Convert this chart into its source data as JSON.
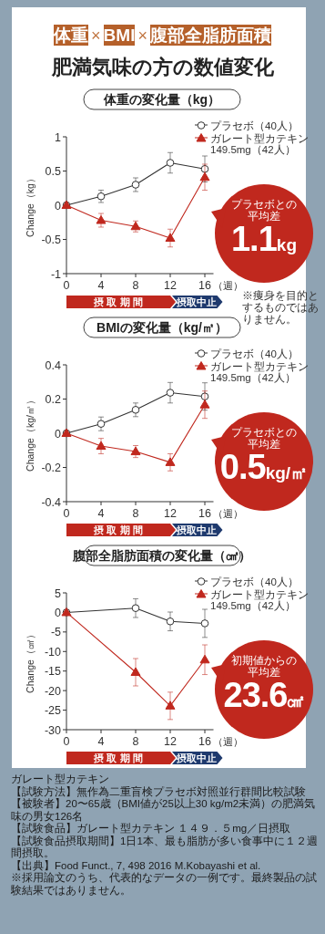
{
  "chart_data": [
    {
      "type": "other",
      "title": "体重×BMI×腹部全脂肪面積",
      "subtitle": "肥満気味の方の数値変化"
    },
    {
      "type": "line",
      "title": "体重の変化量（kg）",
      "xlabel": "（週）",
      "ylabel": "Change（kg）",
      "xlim": [
        0,
        17
      ],
      "xticks": [
        0,
        4,
        8,
        12,
        16
      ],
      "ylim": [
        -1,
        1
      ],
      "yticks": [
        -1,
        -0.5,
        0,
        0.5,
        1
      ],
      "legend": "top right",
      "grid": false,
      "series": [
        {
          "name": "プラセボ（40人）",
          "color": "#333333",
          "marker": "circle",
          "x": [
            0,
            4,
            8,
            12,
            16
          ],
          "values": [
            0,
            0.13,
            0.3,
            0.62,
            0.53
          ],
          "errors": [
            null,
            0.09,
            0.1,
            0.15,
            0.19
          ]
        },
        {
          "name": "ガレート型カテキン 149.5mg（42人）",
          "color": "#c0281e",
          "marker": "triangle",
          "x": [
            0,
            4,
            8,
            12,
            16
          ],
          "values": [
            0,
            -0.22,
            -0.31,
            -0.48,
            0.41
          ],
          "errors": [
            null,
            0.1,
            0.08,
            0.13,
            0.19
          ]
        }
      ],
      "annotations": [
        "プラセボとの平均差",
        "1.1",
        "kg",
        "摂 取 期 間",
        "摂取中止",
        "※痩身を目的とするものではありません。"
      ]
    },
    {
      "type": "line",
      "title": "BMIの変化量（kg/㎡）",
      "xlabel": "（週）",
      "ylabel": "Change（kg/㎡）",
      "xlim": [
        0,
        17
      ],
      "xticks": [
        0,
        4,
        8,
        12,
        16
      ],
      "ylim": [
        -0.4,
        0.4
      ],
      "yticks": [
        -0.4,
        -0.2,
        0,
        0.2,
        0.4
      ],
      "legend": "top right",
      "grid": false,
      "series": [
        {
          "name": "プラセボ（40人）",
          "color": "#333333",
          "marker": "circle",
          "x": [
            0,
            4,
            8,
            12,
            16
          ],
          "values": [
            0,
            0.055,
            0.137,
            0.237,
            0.215
          ],
          "errors": [
            null,
            0.04,
            0.04,
            0.06,
            0.08
          ]
        },
        {
          "name": "ガレート型カテキン 149.5mg（42人）",
          "color": "#c0281e",
          "marker": "triangle",
          "x": [
            0,
            4,
            8,
            12,
            16
          ],
          "values": [
            0,
            -0.075,
            -0.107,
            -0.17,
            0.167
          ],
          "errors": [
            null,
            0.045,
            0.035,
            0.05,
            0.08
          ]
        }
      ],
      "annotations": [
        "プラセボとの平均差",
        "0.5",
        "kg/㎡",
        "摂 取 期 間",
        "摂取中止"
      ]
    },
    {
      "type": "line",
      "title": "腹部全脂肪面積の変化量（㎠）",
      "xlabel": "（週）",
      "ylabel": "Change（㎠）",
      "xlim": [
        0,
        17
      ],
      "xticks": [
        0,
        4,
        8,
        12,
        16
      ],
      "ylim": [
        -30,
        5
      ],
      "yticks": [
        -30,
        -25,
        -20,
        -15,
        -10,
        -5,
        0,
        5
      ],
      "legend": "top right",
      "grid": false,
      "series": [
        {
          "name": "プラセボ（40人）",
          "color": "#333333",
          "marker": "circle",
          "x": [
            0,
            8,
            12,
            16
          ],
          "values": [
            0,
            1.1,
            -2.3,
            -2.8
          ],
          "errors": [
            null,
            2.4,
            2.4,
            3.6
          ]
        },
        {
          "name": "ガレート型カテキン 149.5mg（42人）",
          "color": "#c0281e",
          "marker": "triangle",
          "x": [
            0,
            8,
            12,
            16
          ],
          "values": [
            0,
            -15.3,
            -23.9,
            -12.1
          ],
          "errors": [
            null,
            3.5,
            3.5,
            3.8
          ]
        }
      ],
      "annotations": [
        "初期値からの平均差",
        "23.6",
        "㎠",
        "摂 取 期 間",
        "摂取中止"
      ]
    },
    {
      "type": "other",
      "annotations": [
        "ガレート型カテキン",
        "【試験方法】無作為二重盲検プラセボ対照並行群間比較試験",
        "【被験者】20〜65歳（BMI値が25以上30 kg/m2未満）の肥満気味の男女126名",
        "【試験食品】ガレート型カテキン １４９．５mg／日摂取",
        "【試験食品摂取期間】1日1本、最も脂肪が多い食事中に１２週間摂取。",
        "【出典】Food Funct., 7, 498 2016 M.Kobayashi et al.",
        "※採用論文のうち、代表的なデータの一例です。最終製品の試験結果ではありません。"
      ]
    }
  ]
}
